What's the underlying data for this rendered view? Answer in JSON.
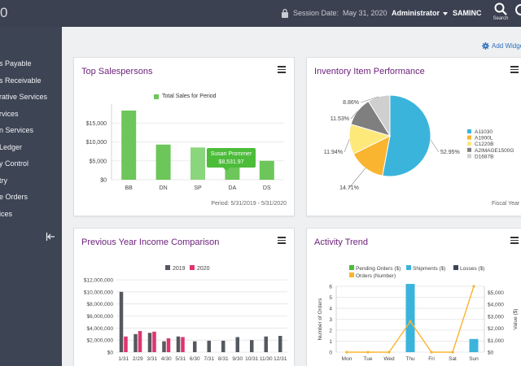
{
  "app": {
    "brand_fragment": "0"
  },
  "header": {
    "session_label": "Session Date:",
    "session_date": "May 31, 2020",
    "user": "Administrator",
    "company": "SAMINC",
    "search_label": "Search"
  },
  "sidebar": {
    "items": [
      {
        "label": "s Payable"
      },
      {
        "label": "s Receivable"
      },
      {
        "label": "rative Services"
      },
      {
        "label": "rvices"
      },
      {
        "label": "n Services"
      },
      {
        "label": "Ledger"
      },
      {
        "label": "y Control"
      },
      {
        "label": "try"
      },
      {
        "label": "e Orders"
      },
      {
        "label": "ices"
      }
    ]
  },
  "main": {
    "add_widget_label": "Add Widge"
  },
  "widgets": {
    "top_salespersons": {
      "title": "Top Salespersons",
      "legend": "Total Sales for Period",
      "tooltip_name": "Susan Prommer",
      "tooltip_value": "$8,531.97",
      "period": "Period: 5/31/2019 - 5/31/2020"
    },
    "inventory": {
      "title": "Inventory Item Performance",
      "footer": "Fiscal Year"
    },
    "income": {
      "title": "Previous Year Income Comparison"
    },
    "activity": {
      "title": "Activity Trend",
      "y_left_label": "Number of Orders",
      "y_right_label": "Value ($)"
    }
  },
  "chart_data": [
    {
      "type": "bar",
      "title": "Top Salespersons",
      "categories": [
        "BB",
        "DN",
        "SP",
        "DA",
        "DS"
      ],
      "series": [
        {
          "name": "Total Sales for Period",
          "values": [
            18300,
            9300,
            8532,
            6700,
            5000
          ]
        }
      ],
      "highlight_index": 2,
      "ylim": [
        0,
        20000
      ],
      "yticks": [
        "$15,000",
        "$10,000",
        "$5,000",
        "$0"
      ],
      "ytick_values": [
        15000,
        10000,
        5000,
        0
      ],
      "colors": {
        "bar": "#6cc65a",
        "highlight": "#8ad67c",
        "tooltip": "#4cbc3a"
      },
      "grid": true
    },
    {
      "type": "pie",
      "title": "Inventory Item Performance",
      "labels": [
        "A11030",
        "A1900L",
        "C1220B",
        "A2IMAGE1500G",
        "D1687B"
      ],
      "values": [
        52.95,
        14.71,
        11.94,
        11.53,
        8.86
      ],
      "value_labels": [
        "52.95%",
        "14.71%",
        "11.94%",
        "11.53%",
        "8.86%"
      ],
      "colors": [
        "#3bb4dc",
        "#f9b530",
        "#fde87a",
        "#7f7f7f",
        "#cfcfcf"
      ],
      "legend": "right"
    },
    {
      "type": "bar",
      "title": "Previous Year Income Comparison",
      "categories": [
        "1/31",
        "2/29",
        "3/31",
        "4/30",
        "5/31",
        "6/30",
        "7/31",
        "8/31",
        "9/30",
        "10/31",
        "11/30",
        "12/31"
      ],
      "series": [
        {
          "name": "2019",
          "values": [
            10000000,
            3000000,
            3200000,
            1800000,
            2600000,
            1800000,
            1900000,
            1900000,
            2500000,
            2000000,
            2600000,
            2700000
          ]
        },
        {
          "name": "2020",
          "values": [
            2600000,
            3500000,
            3400000,
            2300000,
            2500000,
            null,
            null,
            null,
            null,
            null,
            null,
            null
          ]
        }
      ],
      "ylim": [
        0,
        12000000
      ],
      "yticks": [
        "$12,000,000",
        "$10,000,000",
        "$8,000,000",
        "$6,000,000",
        "$4,000,000",
        "$2,000,000",
        "$0"
      ],
      "ytick_values": [
        12000000,
        10000000,
        8000000,
        6000000,
        4000000,
        2000000,
        0
      ],
      "colors": [
        "#55595f",
        "#e0336f"
      ],
      "legend": "top"
    },
    {
      "type": "bar",
      "title": "Activity Trend",
      "categories": [
        "Mon",
        "Tue",
        "Wed",
        "Thu",
        "Fri",
        "Sat",
        "Sun"
      ],
      "series": [
        {
          "name": "Pending Orders ($)",
          "values": [
            0,
            0,
            0,
            0,
            0,
            0,
            0
          ],
          "color": "#4cbc3a"
        },
        {
          "name": "Shipments ($)",
          "values": [
            0,
            0,
            0,
            5700,
            0,
            0,
            1100
          ],
          "color": "#3bb4dc"
        },
        {
          "name": "Losses ($)",
          "values": [
            0,
            0,
            0,
            0,
            0,
            0,
            0
          ],
          "color": "#3d4454"
        },
        {
          "name": "Orders (Number)",
          "values": [
            0,
            0,
            0,
            2.8,
            0,
            0,
            6
          ],
          "color": "#f9b530",
          "type": "line",
          "axis": "left"
        }
      ],
      "ylim_left": [
        0,
        6
      ],
      "yticks_left": [
        "6",
        "5",
        "4",
        "3",
        "2",
        "1",
        "0"
      ],
      "ylim_right": [
        0,
        5500
      ],
      "yticks_right": [
        "$5,000",
        "$4,000",
        "$3,000",
        "$2,000",
        "$1,000",
        "$0"
      ],
      "ytick_values_right": [
        5000,
        4000,
        3000,
        2000,
        1000,
        0
      ],
      "ylabel": "Number of Orders",
      "ylabel_right": "Value ($)",
      "legend": "top"
    }
  ]
}
